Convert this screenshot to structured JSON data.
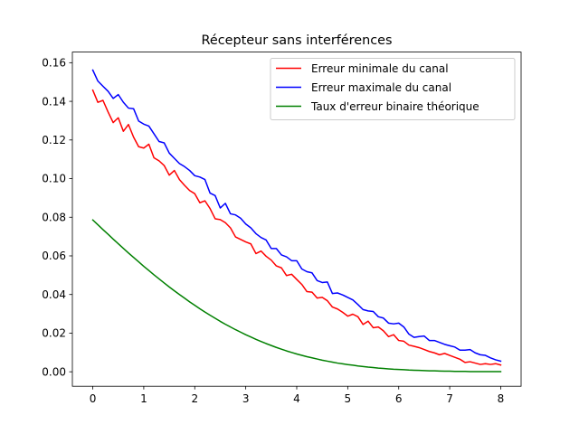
{
  "chart_data": {
    "type": "line",
    "title": "Récepteur sans interférences",
    "xlabel": "",
    "ylabel": "",
    "xlim": [
      -0.4,
      8.4
    ],
    "ylim": [
      -0.0075,
      0.1655
    ],
    "xticks": [
      0,
      1,
      2,
      3,
      4,
      5,
      6,
      7,
      8
    ],
    "xtick_labels": [
      "0",
      "1",
      "2",
      "3",
      "4",
      "5",
      "6",
      "7",
      "8"
    ],
    "yticks": [
      0.0,
      0.02,
      0.04,
      0.06,
      0.08,
      0.1,
      0.12,
      0.14,
      0.16
    ],
    "ytick_labels": [
      "0.00",
      "0.02",
      "0.04",
      "0.06",
      "0.08",
      "0.10",
      "0.12",
      "0.14",
      "0.16"
    ],
    "grid": false,
    "legend_position": "top-right",
    "x": [
      0,
      0.1,
      0.2,
      0.3,
      0.4,
      0.5,
      0.6,
      0.7,
      0.8,
      0.9,
      1.0,
      1.1,
      1.2,
      1.3,
      1.4,
      1.5,
      1.6,
      1.7,
      1.8,
      1.9,
      2.0,
      2.1,
      2.2,
      2.3,
      2.4,
      2.5,
      2.6,
      2.7,
      2.8,
      2.9,
      3.0,
      3.1,
      3.2,
      3.3,
      3.4,
      3.5,
      3.6,
      3.7,
      3.8,
      3.9,
      4.0,
      4.1,
      4.2,
      4.3,
      4.4,
      4.5,
      4.6,
      4.7,
      4.8,
      4.9,
      5.0,
      5.1,
      5.2,
      5.3,
      5.4,
      5.5,
      5.6,
      5.7,
      5.8,
      5.9,
      6.0,
      6.1,
      6.2,
      6.3,
      6.4,
      6.5,
      6.6,
      6.7,
      6.8,
      6.9,
      7.0,
      7.1,
      7.2,
      7.3,
      7.4,
      7.5,
      7.6,
      7.7,
      7.8,
      7.9,
      8.0
    ],
    "series": [
      {
        "name": "Erreur minimale du canal",
        "color": "#ff0000",
        "values": [
          0.1458,
          0.1395,
          0.1405,
          0.1345,
          0.129,
          0.1315,
          0.1245,
          0.128,
          0.1215,
          0.1165,
          0.1158,
          0.1178,
          0.1108,
          0.1092,
          0.1068,
          0.1018,
          0.1042,
          0.0995,
          0.0965,
          0.0938,
          0.0922,
          0.0875,
          0.0885,
          0.0845,
          0.0792,
          0.0788,
          0.0772,
          0.0745,
          0.0698,
          0.0685,
          0.0672,
          0.0662,
          0.0612,
          0.0625,
          0.0598,
          0.0578,
          0.0548,
          0.0538,
          0.0498,
          0.0505,
          0.0478,
          0.0452,
          0.0415,
          0.0412,
          0.0382,
          0.0385,
          0.0368,
          0.0335,
          0.0325,
          0.0308,
          0.0288,
          0.0298,
          0.0285,
          0.0245,
          0.0262,
          0.0228,
          0.0232,
          0.0212,
          0.0182,
          0.0192,
          0.0162,
          0.0158,
          0.0138,
          0.0132,
          0.0125,
          0.0115,
          0.0105,
          0.0098,
          0.0088,
          0.0095,
          0.0085,
          0.0075,
          0.0065,
          0.0048,
          0.0052,
          0.0045,
          0.0038,
          0.0042,
          0.0038,
          0.0042,
          0.0035
        ]
      },
      {
        "name": "Erreur maximale du canal",
        "color": "#0000ff",
        "values": [
          0.1562,
          0.1505,
          0.1478,
          0.1452,
          0.1415,
          0.1435,
          0.1395,
          0.1365,
          0.1362,
          0.1298,
          0.1282,
          0.1272,
          0.1232,
          0.1192,
          0.1185,
          0.1132,
          0.1105,
          0.1078,
          0.1062,
          0.1042,
          0.1015,
          0.1008,
          0.0995,
          0.0925,
          0.0912,
          0.0848,
          0.0872,
          0.0818,
          0.0812,
          0.0795,
          0.0765,
          0.0745,
          0.0715,
          0.0695,
          0.0682,
          0.0638,
          0.0638,
          0.0605,
          0.0595,
          0.0575,
          0.0575,
          0.0532,
          0.0518,
          0.0512,
          0.0472,
          0.0462,
          0.0465,
          0.0405,
          0.0408,
          0.0398,
          0.0385,
          0.0372,
          0.0348,
          0.0322,
          0.0315,
          0.0312,
          0.0285,
          0.0278,
          0.0252,
          0.0248,
          0.0252,
          0.0232,
          0.0195,
          0.0178,
          0.0182,
          0.0185,
          0.0162,
          0.0162,
          0.0152,
          0.0142,
          0.0135,
          0.0128,
          0.0112,
          0.0112,
          0.0115,
          0.0098,
          0.0088,
          0.0085,
          0.0072,
          0.0062,
          0.0055
        ]
      },
      {
        "name": "Taux d'erreur binaire théorique",
        "color": "#008000",
        "values": [
          0.0786,
          0.0761,
          0.0736,
          0.0712,
          0.0687,
          0.0663,
          0.0639,
          0.0615,
          0.0592,
          0.0569,
          0.0546,
          0.0524,
          0.0502,
          0.0481,
          0.046,
          0.0439,
          0.0419,
          0.04,
          0.0381,
          0.0362,
          0.0344,
          0.0326,
          0.0309,
          0.0293,
          0.0277,
          0.0261,
          0.0246,
          0.0232,
          0.0218,
          0.0205,
          0.0192,
          0.018,
          0.0168,
          0.0157,
          0.0146,
          0.0136,
          0.0126,
          0.0117,
          0.0108,
          0.01,
          0.0092,
          0.0085,
          0.0078,
          0.0072,
          0.0066,
          0.006,
          0.0055,
          0.005,
          0.0045,
          0.0041,
          0.0037,
          0.0034,
          0.003,
          0.0027,
          0.0024,
          0.0022,
          0.0019,
          0.0017,
          0.0015,
          0.0013,
          0.0012,
          0.0011,
          0.0009,
          0.0008,
          0.0007,
          0.0006,
          0.0005,
          0.0005,
          0.0004,
          0.0003,
          0.0003,
          0.0002,
          0.0002,
          0.0002,
          0.0001,
          0.0001,
          0.0001,
          0.0001,
          0.0001,
          0.0001,
          0.0001
        ]
      }
    ]
  }
}
